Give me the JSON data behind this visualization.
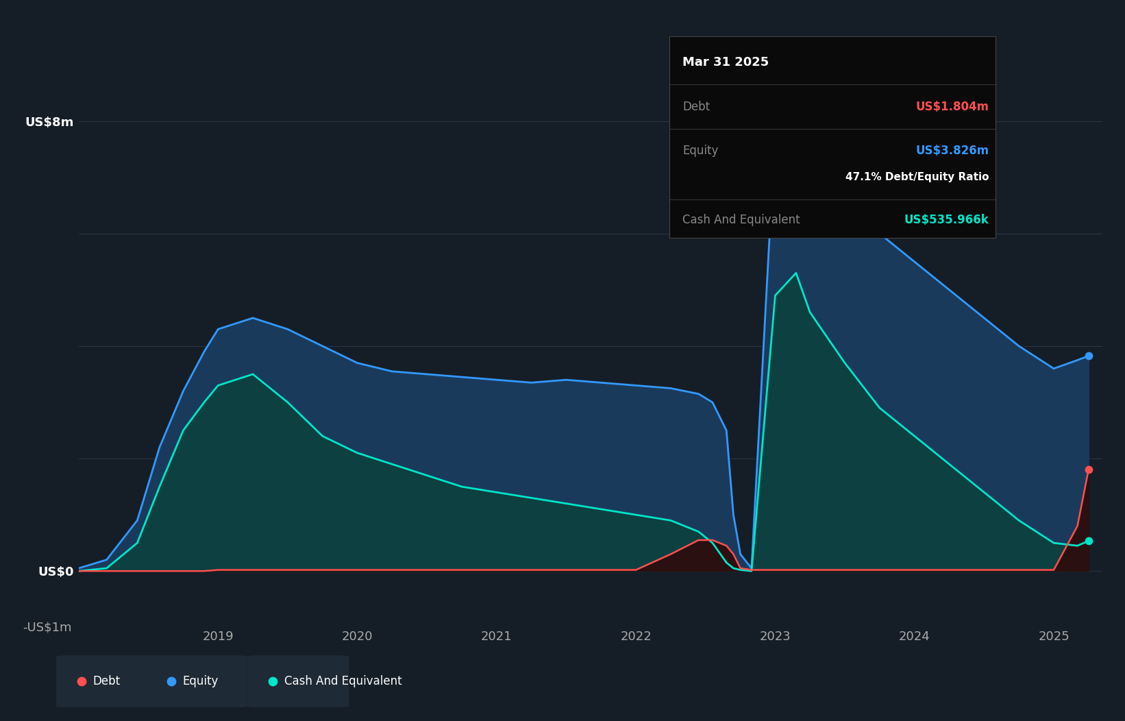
{
  "bg_color": "#151e27",
  "plot_bg_color": "#151e27",
  "grid_color": "#2a3545",
  "debt_color": "#ff5050",
  "equity_color": "#3399ff",
  "cash_color": "#00e5c8",
  "equity_fill_color": "#1a3a5c",
  "cash_fill_color": "#0d4040",
  "debt_fill_color": "#2a1010",
  "ylim_min": -1.0,
  "ylim_max": 9.0,
  "yticks": [
    0,
    8
  ],
  "ytick_labels_left": [
    "US$0",
    "US$8m"
  ],
  "ytick_neg": -1,
  "ytick_neg_label": "-US$1m",
  "tooltip": {
    "title": "Mar 31 2025",
    "debt_label": "Debt",
    "debt_value": "US$1.804m",
    "equity_label": "Equity",
    "equity_value": "US$3.826m",
    "ratio_text": "47.1% Debt/Equity Ratio",
    "cash_label": "Cash And Equivalent",
    "cash_value": "US$535.966k"
  },
  "legend": [
    {
      "label": "Debt",
      "color": "#ff5050"
    },
    {
      "label": "Equity",
      "color": "#3399ff"
    },
    {
      "label": "Cash And Equivalent",
      "color": "#00e5c8"
    }
  ],
  "dates": [
    2018.0,
    2018.2,
    2018.42,
    2018.58,
    2018.75,
    2018.9,
    2019.0,
    2019.25,
    2019.5,
    2019.75,
    2020.0,
    2020.25,
    2020.5,
    2020.75,
    2021.0,
    2021.25,
    2021.5,
    2021.75,
    2022.0,
    2022.25,
    2022.45,
    2022.55,
    2022.65,
    2022.7,
    2022.75,
    2022.83,
    2023.0,
    2023.15,
    2023.25,
    2023.5,
    2023.75,
    2024.0,
    2024.25,
    2024.5,
    2024.75,
    2025.0,
    2025.17,
    2025.25
  ],
  "equity": [
    0.05,
    0.2,
    0.9,
    2.2,
    3.2,
    3.9,
    4.3,
    4.5,
    4.3,
    4.0,
    3.7,
    3.55,
    3.5,
    3.45,
    3.4,
    3.35,
    3.4,
    3.35,
    3.3,
    3.25,
    3.15,
    3.0,
    2.5,
    1.0,
    0.3,
    0.05,
    7.8,
    7.5,
    7.2,
    6.6,
    6.0,
    5.5,
    5.0,
    4.5,
    4.0,
    3.6,
    3.75,
    3.826
  ],
  "cash": [
    0.0,
    0.05,
    0.5,
    1.5,
    2.5,
    3.0,
    3.3,
    3.5,
    3.0,
    2.4,
    2.1,
    1.9,
    1.7,
    1.5,
    1.4,
    1.3,
    1.2,
    1.1,
    1.0,
    0.9,
    0.7,
    0.5,
    0.15,
    0.05,
    0.02,
    0.0,
    4.9,
    5.3,
    4.6,
    3.7,
    2.9,
    2.4,
    1.9,
    1.4,
    0.9,
    0.5,
    0.45,
    0.536
  ],
  "debt": [
    0.0,
    0.0,
    0.0,
    0.0,
    0.0,
    0.0,
    0.02,
    0.02,
    0.02,
    0.02,
    0.02,
    0.02,
    0.02,
    0.02,
    0.02,
    0.02,
    0.02,
    0.02,
    0.02,
    0.3,
    0.55,
    0.55,
    0.45,
    0.3,
    0.05,
    0.02,
    0.02,
    0.02,
    0.02,
    0.02,
    0.02,
    0.02,
    0.02,
    0.02,
    0.02,
    0.02,
    0.8,
    1.804
  ]
}
